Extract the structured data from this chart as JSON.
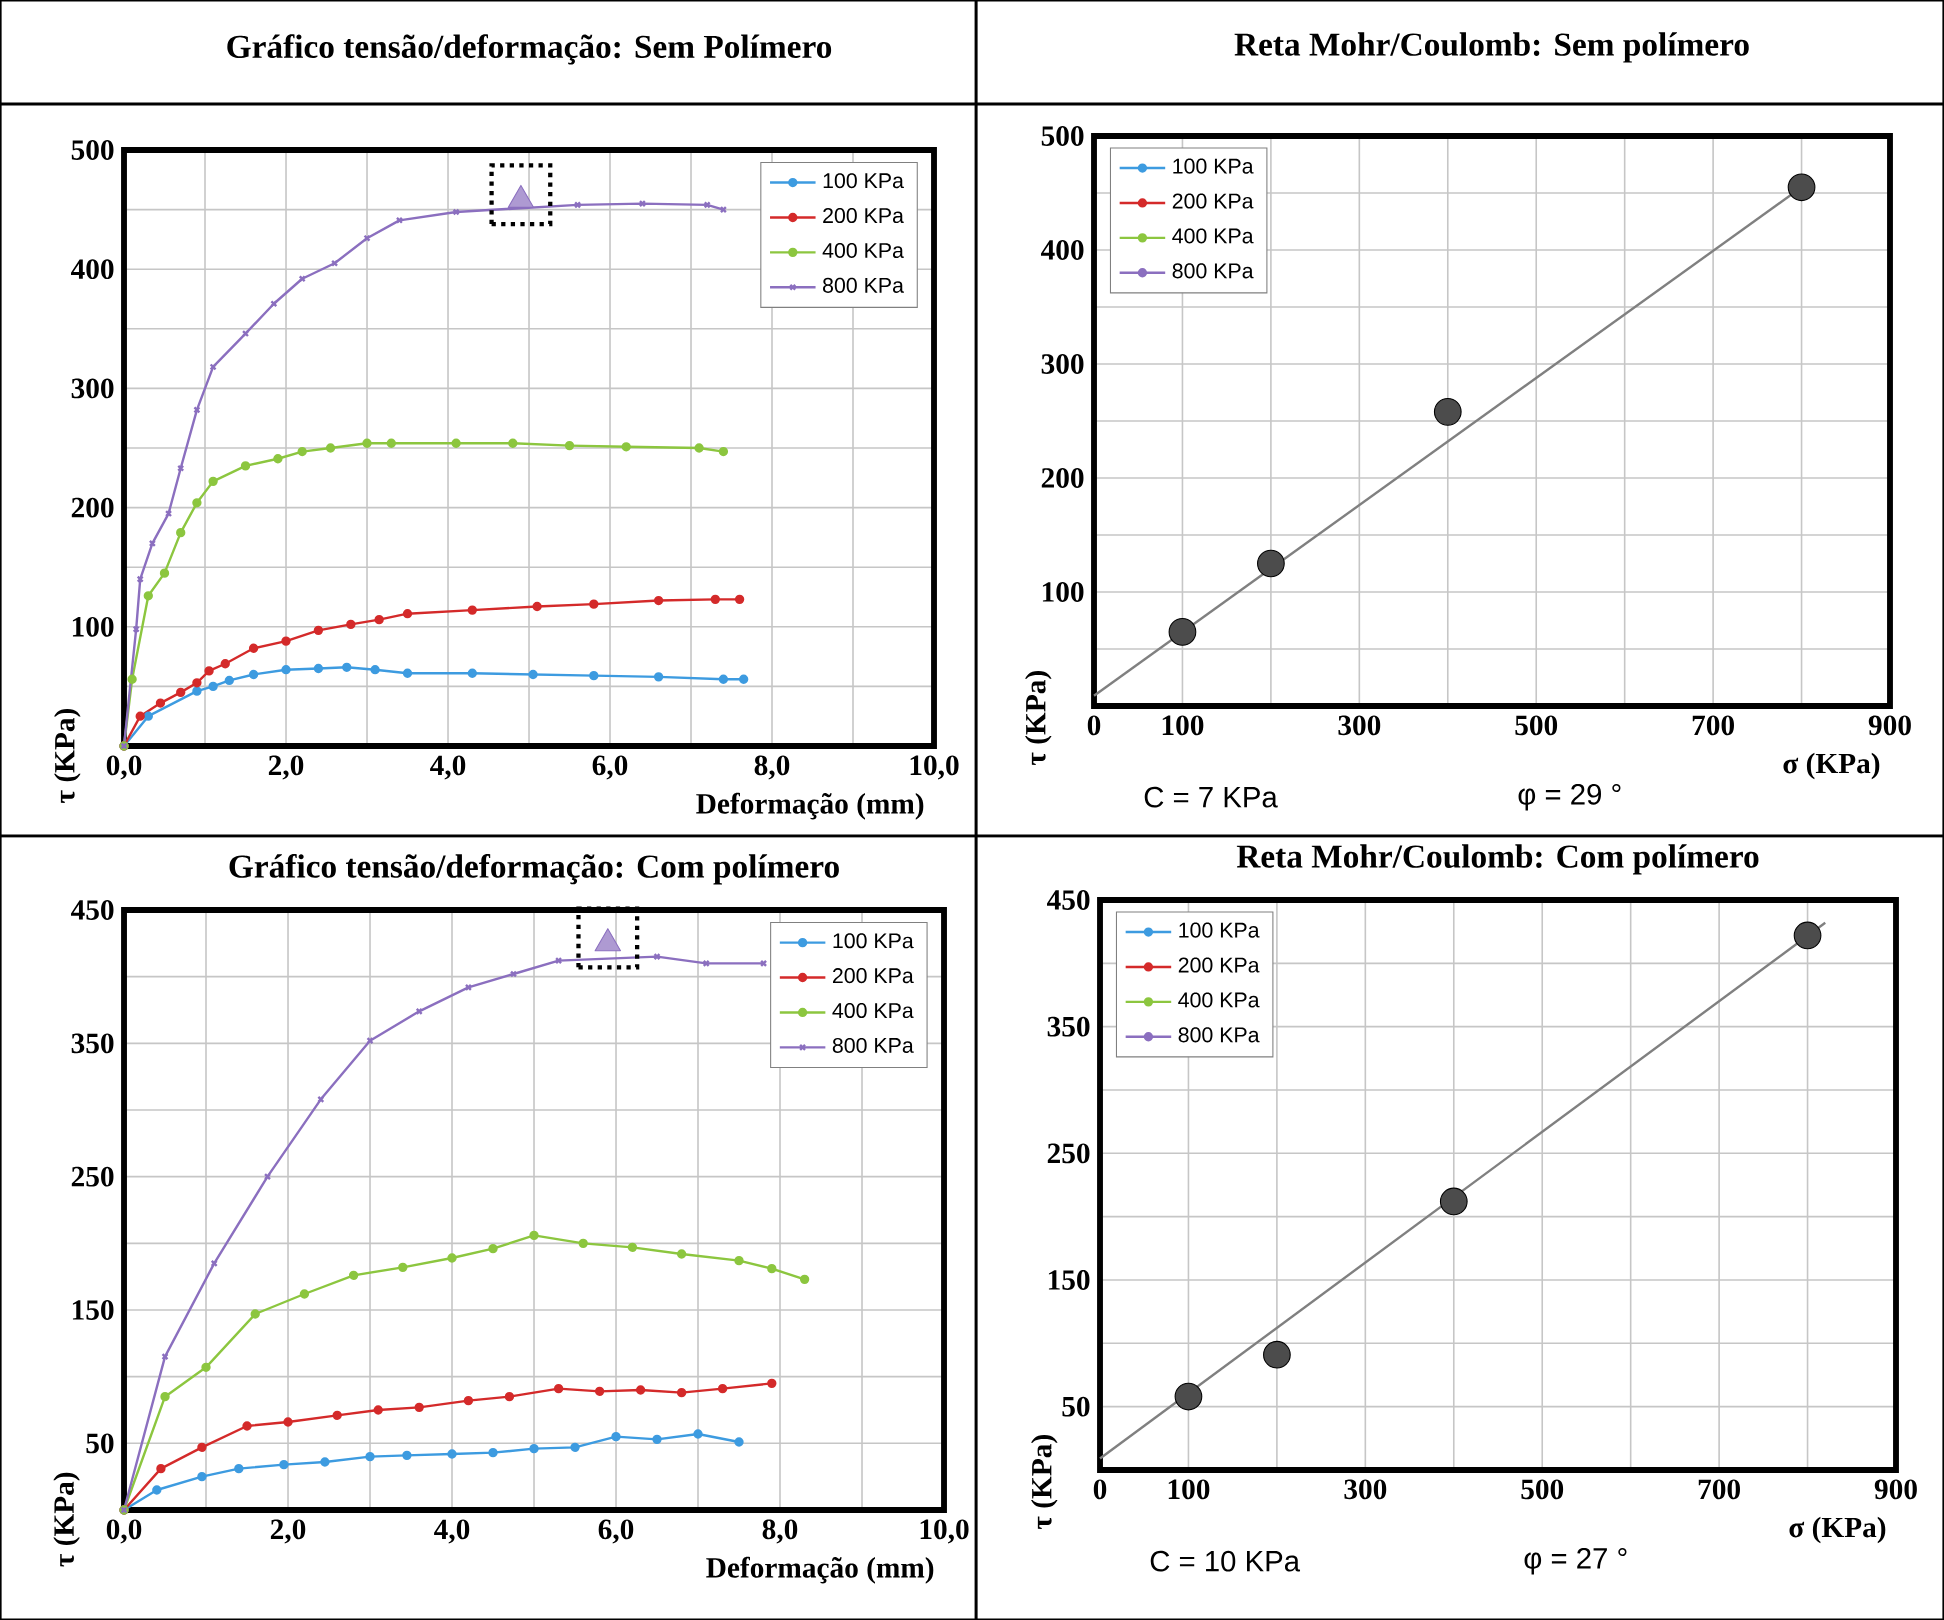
{
  "chart_data": [
    {
      "type": "line",
      "title": "Gráfico tensão/deformação: Sem Polímero",
      "xlabel": "Deformação (mm)",
      "ylabel": "τ (KPa)",
      "xlim": [
        0,
        10
      ],
      "ylim": [
        0,
        500
      ],
      "xticks": [
        {
          "value": 0,
          "label": "0,0"
        },
        {
          "value": 1,
          "label": null
        },
        {
          "value": 2,
          "label": "2,0"
        },
        {
          "value": 3,
          "label": null
        },
        {
          "value": 4,
          "label": "4,0"
        },
        {
          "value": 5,
          "label": null
        },
        {
          "value": 6,
          "label": "6,0"
        },
        {
          "value": 7,
          "label": null
        },
        {
          "value": 8,
          "label": "8,0"
        },
        {
          "value": 9,
          "label": null
        },
        {
          "value": 10,
          "label": "10,0"
        }
      ],
      "yticks": [
        {
          "value": 50,
          "label": null
        },
        100,
        {
          "value": 150,
          "label": null
        },
        200,
        {
          "value": 250,
          "label": null
        },
        300,
        {
          "value": 350,
          "label": null
        },
        400,
        {
          "value": 450,
          "label": null
        },
        500
      ],
      "grid": true,
      "legend": "top right",
      "marker": "circle",
      "series": [
        {
          "name": "100 KPa",
          "color": "#3d9be0",
          "x": [
            0,
            0.3,
            0.9,
            1.1,
            1.3,
            1.6,
            2.0,
            2.4,
            2.75,
            3.1,
            3.5,
            4.3,
            5.05,
            5.8,
            6.6,
            7.4,
            7.65
          ],
          "values": [
            0,
            25,
            46,
            50,
            55,
            60,
            64,
            65,
            66,
            64,
            61,
            61,
            60,
            59,
            58,
            56,
            56
          ]
        },
        {
          "name": "200 KPa",
          "color": "#d42a2a",
          "x": [
            0,
            0.2,
            0.45,
            0.7,
            0.9,
            1.05,
            1.25,
            1.6,
            2.0,
            2.4,
            2.8,
            3.15,
            3.5,
            4.3,
            5.1,
            5.8,
            6.6,
            7.3,
            7.6
          ],
          "values": [
            0,
            25,
            36,
            45,
            53,
            63,
            69,
            82,
            88,
            97,
            102,
            106,
            111,
            114,
            117,
            119,
            122,
            123,
            123
          ]
        },
        {
          "name": "400 KPa",
          "color": "#8cc63f",
          "x": [
            0,
            0.1,
            0.3,
            0.5,
            0.7,
            0.9,
            1.1,
            1.5,
            1.9,
            2.2,
            2.55,
            3.0,
            3.3,
            4.1,
            4.8,
            5.5,
            6.2,
            7.1,
            7.4
          ],
          "values": [
            0,
            56,
            126,
            145,
            179,
            204,
            222,
            235,
            241,
            247,
            250,
            254,
            254,
            254,
            254,
            252,
            251,
            250,
            247
          ]
        },
        {
          "name": "800 KPa",
          "color": "#8b6fbf",
          "marker": "cross",
          "x": [
            0,
            0.15,
            0.2,
            0.35,
            0.55,
            0.7,
            0.9,
            1.1,
            1.5,
            1.85,
            2.2,
            2.6,
            3.0,
            3.4,
            4.1,
            5.6,
            6.4,
            7.2,
            7.4
          ],
          "values": [
            0,
            98,
            140,
            170,
            195,
            233,
            282,
            318,
            346,
            371,
            392,
            405,
            426,
            441,
            448,
            454,
            455,
            454,
            450
          ]
        },
        {
          "type": "scatter",
          "color": "#8b6fbf",
          "marker": "triangle",
          "x": [
            4.9
          ],
          "values": [
            458
          ]
        }
      ]
    },
    {
      "type": "scatter",
      "title": "Reta Mohr/Coulomb: Sem polímero",
      "xlabel": "σ (KPa)",
      "ylabel": "τ (KPa)",
      "xlim": [
        0,
        900
      ],
      "ylim": [
        0,
        500
      ],
      "xticks": [
        0,
        100,
        {
          "value": 200,
          "label": null
        },
        300,
        {
          "value": 400,
          "label": null
        },
        500,
        {
          "value": 600,
          "label": null
        },
        700,
        {
          "value": 800,
          "label": null
        },
        900
      ],
      "yticks": [
        {
          "value": 50,
          "label": null
        },
        100,
        {
          "value": 150,
          "label": null
        },
        200,
        {
          "value": 250,
          "label": null
        },
        300,
        {
          "value": 350,
          "label": null
        },
        400,
        {
          "value": 450,
          "label": null
        },
        500
      ],
      "grid": true,
      "legend": "top left",
      "marker": "circle",
      "annotations": [
        "C = 7 KPa",
        "φ = 29 °"
      ],
      "x": [
        100,
        200,
        400,
        800
      ],
      "series": [
        {
          "type": "line",
          "name": "100 KPa",
          "color": "#3d9be0",
          "values": [
            null,
            null,
            null,
            null
          ]
        },
        {
          "type": "line",
          "name": "200 KPa",
          "color": "#d42a2a",
          "values": [
            null,
            null,
            null,
            null
          ]
        },
        {
          "type": "line",
          "name": "400 KPa",
          "color": "#8cc63f",
          "values": [
            null,
            null,
            null,
            null
          ]
        },
        {
          "type": "line",
          "name": "800 KPa",
          "color": "#8b6fbf",
          "values": [
            null,
            null,
            null,
            null
          ]
        },
        {
          "type": "line",
          "color": "#808080",
          "marker": "none",
          "x": [
            0,
            800
          ],
          "values": [
            9,
            455
          ]
        },
        {
          "type": "scatter",
          "color": "#000000",
          "values": [
            65,
            125,
            258,
            455
          ]
        }
      ]
    },
    {
      "type": "line",
      "title": "Gráfico tensão/deformação: Com polímero",
      "xlabel": "Deformação (mm)",
      "ylabel": "τ (KPa)",
      "xlim": [
        0,
        10
      ],
      "ylim": [
        0,
        450
      ],
      "xticks": [
        {
          "value": 0,
          "label": "0,0"
        },
        {
          "value": 1,
          "label": null
        },
        {
          "value": 2,
          "label": "2,0"
        },
        {
          "value": 3,
          "label": null
        },
        {
          "value": 4,
          "label": "4,0"
        },
        {
          "value": 5,
          "label": null
        },
        {
          "value": 6,
          "label": "6,0"
        },
        {
          "value": 7,
          "label": null
        },
        {
          "value": 8,
          "label": "8,0"
        },
        {
          "value": 9,
          "label": null
        },
        {
          "value": 10,
          "label": "10,0"
        }
      ],
      "yticks": [
        50,
        {
          "value": 100,
          "label": null
        },
        150,
        {
          "value": 200,
          "label": null
        },
        250,
        {
          "value": 300,
          "label": null
        },
        350,
        {
          "value": 400,
          "label": null
        },
        450
      ],
      "grid": true,
      "legend": "top right",
      "marker": "circle",
      "series": [
        {
          "name": "100 KPa",
          "color": "#3d9be0",
          "x": [
            0,
            0.4,
            0.95,
            1.4,
            1.95,
            2.45,
            3.0,
            3.45,
            4.0,
            4.5,
            5.0,
            5.5,
            6.0,
            6.5,
            7.0,
            7.5
          ],
          "values": [
            0,
            15,
            25,
            31,
            34,
            36,
            40,
            41,
            42,
            43,
            46,
            47,
            55,
            53,
            57,
            51
          ]
        },
        {
          "name": "200 KPa",
          "color": "#d42a2a",
          "x": [
            0,
            0.45,
            0.95,
            1.5,
            2.0,
            2.6,
            3.1,
            3.6,
            4.2,
            4.7,
            5.3,
            5.8,
            6.3,
            6.8,
            7.3,
            7.9
          ],
          "values": [
            0,
            31,
            47,
            63,
            66,
            71,
            75,
            77,
            82,
            85,
            91,
            89,
            90,
            88,
            91,
            95
          ]
        },
        {
          "name": "400 KPa",
          "color": "#8cc63f",
          "x": [
            0,
            0.5,
            1.0,
            1.6,
            2.2,
            2.8,
            3.4,
            4.0,
            4.5,
            5.0,
            5.6,
            6.2,
            6.8,
            7.5,
            7.9,
            8.3
          ],
          "values": [
            0,
            85,
            107,
            147,
            162,
            176,
            182,
            189,
            196,
            206,
            200,
            197,
            192,
            187,
            181,
            173
          ]
        },
        {
          "name": "800 KPa",
          "color": "#8b6fbf",
          "marker": "cross",
          "x": [
            0,
            0.5,
            1.1,
            1.75,
            2.4,
            3.0,
            3.6,
            4.2,
            4.75,
            5.3,
            6.5,
            7.1,
            7.8
          ],
          "values": [
            0,
            115,
            185,
            250,
            308,
            352,
            374,
            392,
            402,
            412,
            415,
            410,
            410
          ]
        },
        {
          "type": "scatter",
          "color": "#8b6fbf",
          "marker": "triangle",
          "x": [
            5.9
          ],
          "values": [
            425
          ]
        }
      ]
    },
    {
      "type": "scatter",
      "title": "Reta Mohr/Coulomb: Com polímero",
      "xlabel": "σ (KPa)",
      "ylabel": "τ (KPa)",
      "xlim": [
        0,
        900
      ],
      "ylim": [
        0,
        450
      ],
      "xticks": [
        0,
        100,
        {
          "value": 200,
          "label": null
        },
        300,
        {
          "value": 400,
          "label": null
        },
        500,
        {
          "value": 600,
          "label": null
        },
        700,
        {
          "value": 800,
          "label": null
        },
        900
      ],
      "yticks": [
        50,
        {
          "value": 100,
          "label": null
        },
        150,
        {
          "value": 200,
          "label": null
        },
        250,
        {
          "value": 300,
          "label": null
        },
        350,
        {
          "value": 400,
          "label": null
        },
        450
      ],
      "grid": true,
      "legend": "top left",
      "marker": "circle",
      "annotations": [
        "C = 10 KPa",
        "φ = 27 °"
      ],
      "x": [
        100,
        200,
        400,
        800
      ],
      "series": [
        {
          "type": "line",
          "name": "100 KPa",
          "color": "#3d9be0",
          "values": [
            null,
            null,
            null,
            null
          ]
        },
        {
          "type": "line",
          "name": "200 KPa",
          "color": "#d42a2a",
          "values": [
            null,
            null,
            null,
            null
          ]
        },
        {
          "type": "line",
          "name": "400 KPa",
          "color": "#8cc63f",
          "values": [
            null,
            null,
            null,
            null
          ]
        },
        {
          "type": "line",
          "name": "800 KPa",
          "color": "#8b6fbf",
          "values": [
            null,
            null,
            null,
            null
          ]
        },
        {
          "type": "line",
          "color": "#808080",
          "marker": "none",
          "x": [
            0,
            820
          ],
          "values": [
            9,
            432
          ]
        },
        {
          "type": "scatter",
          "color": "#000000",
          "values": [
            58,
            91,
            212,
            422
          ]
        }
      ]
    }
  ]
}
